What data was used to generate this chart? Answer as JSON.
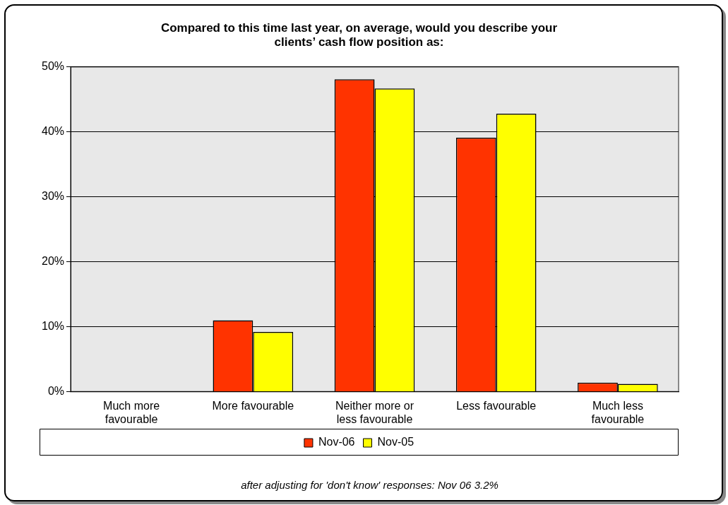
{
  "chart_data": {
    "type": "bar",
    "title": "Compared to this time last year, on average, would you describe your clients’ cash flow position as:",
    "categories": [
      "Much more favourable",
      "More favourable",
      "Neither more or less favourable",
      "Less favourable",
      "Much less favourable"
    ],
    "series": [
      {
        "name": "Nov-06",
        "color": "#ff3300",
        "values": [
          0,
          11.0,
          48.1,
          39.1,
          1.4
        ]
      },
      {
        "name": "Nov-05",
        "color": "#ffff00",
        "values": [
          0,
          9.2,
          46.7,
          42.8,
          1.2
        ]
      }
    ],
    "ylim": [
      0,
      50
    ],
    "yticks": [
      {
        "value": 0,
        "label": "0%"
      },
      {
        "value": 10,
        "label": "10%"
      },
      {
        "value": 20,
        "label": "20%"
      },
      {
        "value": 30,
        "label": "30%"
      },
      {
        "value": 40,
        "label": "40%"
      },
      {
        "value": 50,
        "label": "50%"
      }
    ],
    "grid": "y",
    "legend": "bottom",
    "annotations": [
      "after adjusting for 'don't know' responses: Nov 06 3.2%"
    ]
  }
}
